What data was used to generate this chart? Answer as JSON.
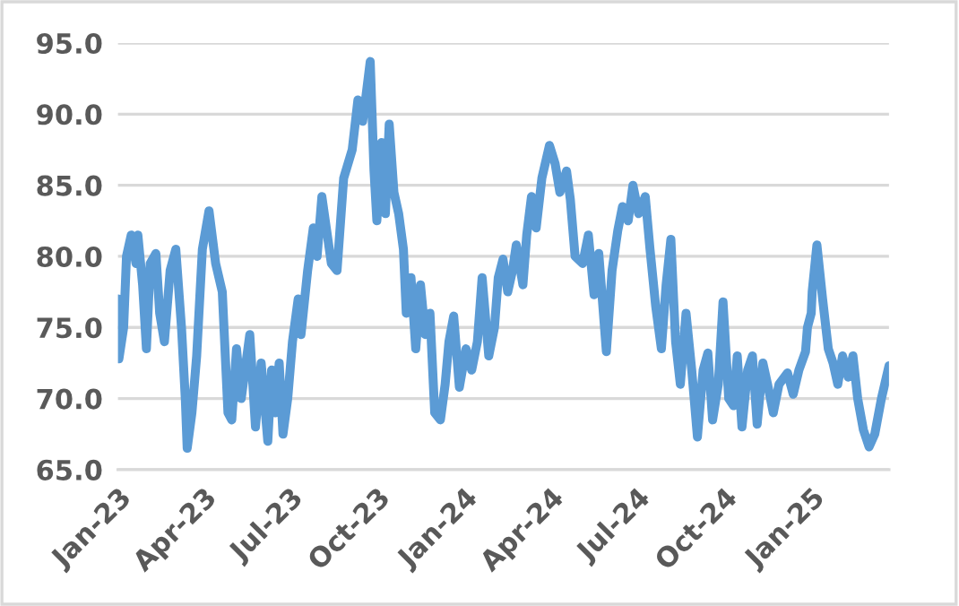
{
  "chart_data": {
    "type": "line",
    "x": [
      "2023-01-01",
      "2023-01-02",
      "2023-01-07",
      "2023-01-10",
      "2023-01-15",
      "2023-01-20",
      "2023-01-22",
      "2023-01-27",
      "2023-01-31",
      "2023-02-04",
      "2023-02-10",
      "2023-02-14",
      "2023-02-19",
      "2023-02-25",
      "2023-03-03",
      "2023-03-09",
      "2023-03-13",
      "2023-03-15",
      "2023-03-20",
      "2023-03-25",
      "2023-03-31",
      "2023-04-07",
      "2023-04-14",
      "2023-04-21",
      "2023-04-27",
      "2023-05-01",
      "2023-05-06",
      "2023-05-11",
      "2023-05-20",
      "2023-05-26",
      "2023-06-01",
      "2023-06-08",
      "2023-06-12",
      "2023-06-16",
      "2023-06-20",
      "2023-06-24",
      "2023-06-29",
      "2023-07-04",
      "2023-07-10",
      "2023-07-13",
      "2023-07-20",
      "2023-07-26",
      "2023-07-30",
      "2023-08-04",
      "2023-08-14",
      "2023-08-20",
      "2023-08-27",
      "2023-09-05",
      "2023-09-11",
      "2023-09-16",
      "2023-09-19",
      "2023-09-24",
      "2023-09-28",
      "2023-10-01",
      "2023-10-06",
      "2023-10-10",
      "2023-10-14",
      "2023-10-19",
      "2023-10-24",
      "2023-10-29",
      "2023-11-01",
      "2023-11-06",
      "2023-11-11",
      "2023-11-16",
      "2023-11-21",
      "2023-11-26",
      "2023-12-01",
      "2023-12-07",
      "2023-12-12",
      "2023-12-16",
      "2023-12-21",
      "2023-12-27",
      "2024-01-03",
      "2024-01-09",
      "2024-01-15",
      "2024-01-20",
      "2024-01-27",
      "2024-02-02",
      "2024-02-06",
      "2024-02-11",
      "2024-02-16",
      "2024-02-21",
      "2024-02-25",
      "2024-03-03",
      "2024-03-07",
      "2024-03-12",
      "2024-03-17",
      "2024-03-23",
      "2024-03-31",
      "2024-04-06",
      "2024-04-11",
      "2024-04-18",
      "2024-04-22",
      "2024-04-27",
      "2024-05-05",
      "2024-05-11",
      "2024-05-17",
      "2024-05-22",
      "2024-05-30",
      "2024-06-05",
      "2024-06-11",
      "2024-06-16",
      "2024-06-22",
      "2024-06-27",
      "2024-07-03",
      "2024-07-10",
      "2024-07-15",
      "2024-07-21",
      "2024-07-27",
      "2024-08-01",
      "2024-08-06",
      "2024-08-11",
      "2024-08-16",
      "2024-08-22",
      "2024-08-28",
      "2024-09-03",
      "2024-09-09",
      "2024-09-14",
      "2024-09-19",
      "2024-09-25",
      "2024-09-30",
      "2024-10-06",
      "2024-10-11",
      "2024-10-15",
      "2024-10-20",
      "2024-10-26",
      "2024-10-31",
      "2024-11-05",
      "2024-11-11",
      "2024-11-16",
      "2024-11-22",
      "2024-11-28",
      "2024-12-07",
      "2024-12-13",
      "2024-12-19",
      "2024-12-26",
      "2024-12-28",
      "2025-01-01",
      "2025-01-02",
      "2025-01-07",
      "2025-01-13",
      "2025-01-19",
      "2025-01-24",
      "2025-01-29",
      "2025-02-03",
      "2025-02-09",
      "2025-02-14",
      "2025-02-19",
      "2025-02-25",
      "2025-03-03",
      "2025-03-09",
      "2025-03-16",
      "2025-03-24"
    ],
    "series": [
      {
        "color": "#5b9bd5",
        "values": [
          77.0,
          72.8,
          75,
          80,
          81.5,
          79.5,
          81.5,
          78,
          73.5,
          79.5,
          80.2,
          76,
          74,
          79,
          80.5,
          75,
          70,
          66.5,
          69,
          73,
          80.5,
          83.2,
          79.5,
          77.5,
          69,
          68.5,
          73.5,
          70,
          74.5,
          68,
          72.5,
          67,
          72,
          69,
          72.5,
          67.5,
          70,
          74,
          77,
          74.5,
          79,
          82,
          80,
          84.2,
          79.5,
          79,
          85.5,
          87.5,
          91,
          89.5,
          91,
          93.7,
          86,
          82.5,
          88,
          83,
          89.3,
          84.5,
          83,
          80.5,
          76,
          78.5,
          73.5,
          78,
          74.5,
          76,
          69,
          68.5,
          71,
          74,
          75.8,
          70.8,
          73.5,
          72,
          74,
          78.5,
          73,
          75,
          78.5,
          79.8,
          77.5,
          79,
          80.8,
          78,
          81.5,
          84.2,
          82,
          85.5,
          87.8,
          86.5,
          84.5,
          86,
          84,
          80,
          79.5,
          81.5,
          77.3,
          80.2,
          73.3,
          79,
          81.8,
          83.5,
          82.5,
          85.0,
          83,
          84.2,
          80.5,
          76.5,
          73.5,
          78,
          81.2,
          74,
          71,
          76,
          72,
          67.3,
          72,
          73.2,
          68.5,
          71,
          76.8,
          70,
          69.5,
          73,
          68,
          72,
          73,
          68.2,
          72.5,
          71,
          69,
          71,
          71.8,
          70.3,
          72,
          73.3,
          75,
          76,
          77.5,
          80.8,
          77,
          73.5,
          72.5,
          71,
          73,
          71.5,
          73,
          70,
          67.8,
          66.6,
          67.5,
          70,
          72.3
        ]
      }
    ],
    "xlim": [
      "2023-01-01",
      "2025-03-24"
    ],
    "xticks": [
      {
        "value": "2023-01-01",
        "label": "Jan-23"
      },
      {
        "value": "2023-04-01",
        "label": "Apr-23"
      },
      {
        "value": "2023-07-01",
        "label": "Jul-23"
      },
      {
        "value": "2023-10-01",
        "label": "Oct-23"
      },
      {
        "value": "2024-01-01",
        "label": "Jan-24"
      },
      {
        "value": "2024-04-01",
        "label": "Apr-24"
      },
      {
        "value": "2024-07-01",
        "label": "Jul-24"
      },
      {
        "value": "2024-10-01",
        "label": "Oct-24"
      },
      {
        "value": "2025-01-01",
        "label": "Jan-25"
      }
    ],
    "ylim": [
      65,
      95
    ],
    "yticks": [
      {
        "value": 65,
        "label": "65.0"
      },
      {
        "value": 70,
        "label": "70.0"
      },
      {
        "value": 75,
        "label": "75.0"
      },
      {
        "value": 80,
        "label": "80.0"
      },
      {
        "value": 85,
        "label": "85.0"
      },
      {
        "value": 90,
        "label": "90.0"
      },
      {
        "value": 95,
        "label": "95.0"
      }
    ],
    "grid": "y",
    "marker": "none",
    "line_style": "solid"
  }
}
